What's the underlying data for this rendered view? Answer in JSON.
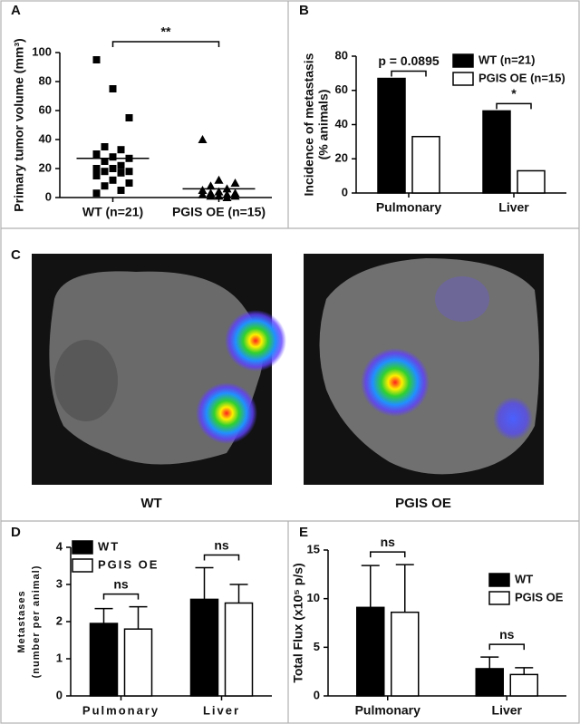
{
  "image_panel": {
    "label": "C",
    "captions": [
      "WT",
      "PGIS OE"
    ]
  },
  "chart_data": [
    {
      "type": "dot",
      "label": "A",
      "ylabel": "Primary tumor volume (mm³)",
      "categories": [
        "WT (n=21)",
        "PGIS OE (n=15)"
      ],
      "groups": [
        {
          "marker": "square",
          "color": "#000000",
          "mean": 27,
          "values": [
            95,
            75,
            55,
            35,
            33,
            30,
            28,
            27,
            25,
            22,
            20,
            20,
            18,
            18,
            17,
            15,
            12,
            10,
            8,
            5,
            3
          ]
        },
        {
          "marker": "triangle",
          "color": "#000000",
          "mean": 6,
          "values": [
            40,
            12,
            10,
            8,
            6,
            5,
            4,
            3,
            3,
            2,
            2,
            1,
            1,
            1,
            0
          ]
        }
      ],
      "annotations": [
        "**"
      ],
      "ylim": [
        0,
        100
      ],
      "yticks": [
        0,
        20,
        40,
        60,
        80,
        100
      ]
    },
    {
      "type": "bar",
      "label": "B",
      "ylabel": [
        "Incidence of metastasis",
        "(% animals)"
      ],
      "categories": [
        "Pulmonary",
        "Liver"
      ],
      "series": [
        {
          "name": "WT (n=21)",
          "color": "#000000",
          "values": [
            67,
            48
          ]
        },
        {
          "name": "PGIS OE (n=15)",
          "color": "#ffffff",
          "values": [
            33,
            13
          ]
        }
      ],
      "annotations": [
        "p = 0.0895",
        "*"
      ],
      "ylim": [
        0,
        80
      ],
      "yticks": [
        0,
        20,
        40,
        60,
        80
      ]
    },
    {
      "type": "bar",
      "label": "D",
      "ylabel": [
        "Metastases",
        "(number per animal)"
      ],
      "categories": [
        "Pulmonary",
        "Liver"
      ],
      "series": [
        {
          "name": "WT",
          "color": "#000000",
          "values": [
            1.95,
            2.6
          ],
          "errors": [
            0.4,
            0.85
          ]
        },
        {
          "name": "PGIS OE",
          "color": "#ffffff",
          "values": [
            1.8,
            2.5
          ],
          "errors": [
            0.6,
            0.5
          ]
        }
      ],
      "annotations": [
        "ns",
        "ns"
      ],
      "ylim": [
        0,
        4
      ],
      "yticks": [
        0,
        1,
        2,
        3,
        4
      ]
    },
    {
      "type": "bar",
      "label": "E",
      "ylabel": "Total Flux (x10⁵ p/s)",
      "categories": [
        "Pulmonary",
        "Liver"
      ],
      "series": [
        {
          "name": "WT",
          "color": "#000000",
          "values": [
            9.1,
            2.8
          ],
          "errors": [
            4.3,
            1.2
          ]
        },
        {
          "name": "PGIS OE",
          "color": "#ffffff",
          "values": [
            8.6,
            2.2
          ],
          "errors": [
            4.9,
            0.7
          ]
        }
      ],
      "annotations": [
        "ns",
        "ns"
      ],
      "ylim": [
        0,
        15
      ],
      "yticks": [
        0,
        5,
        10,
        15
      ]
    }
  ]
}
